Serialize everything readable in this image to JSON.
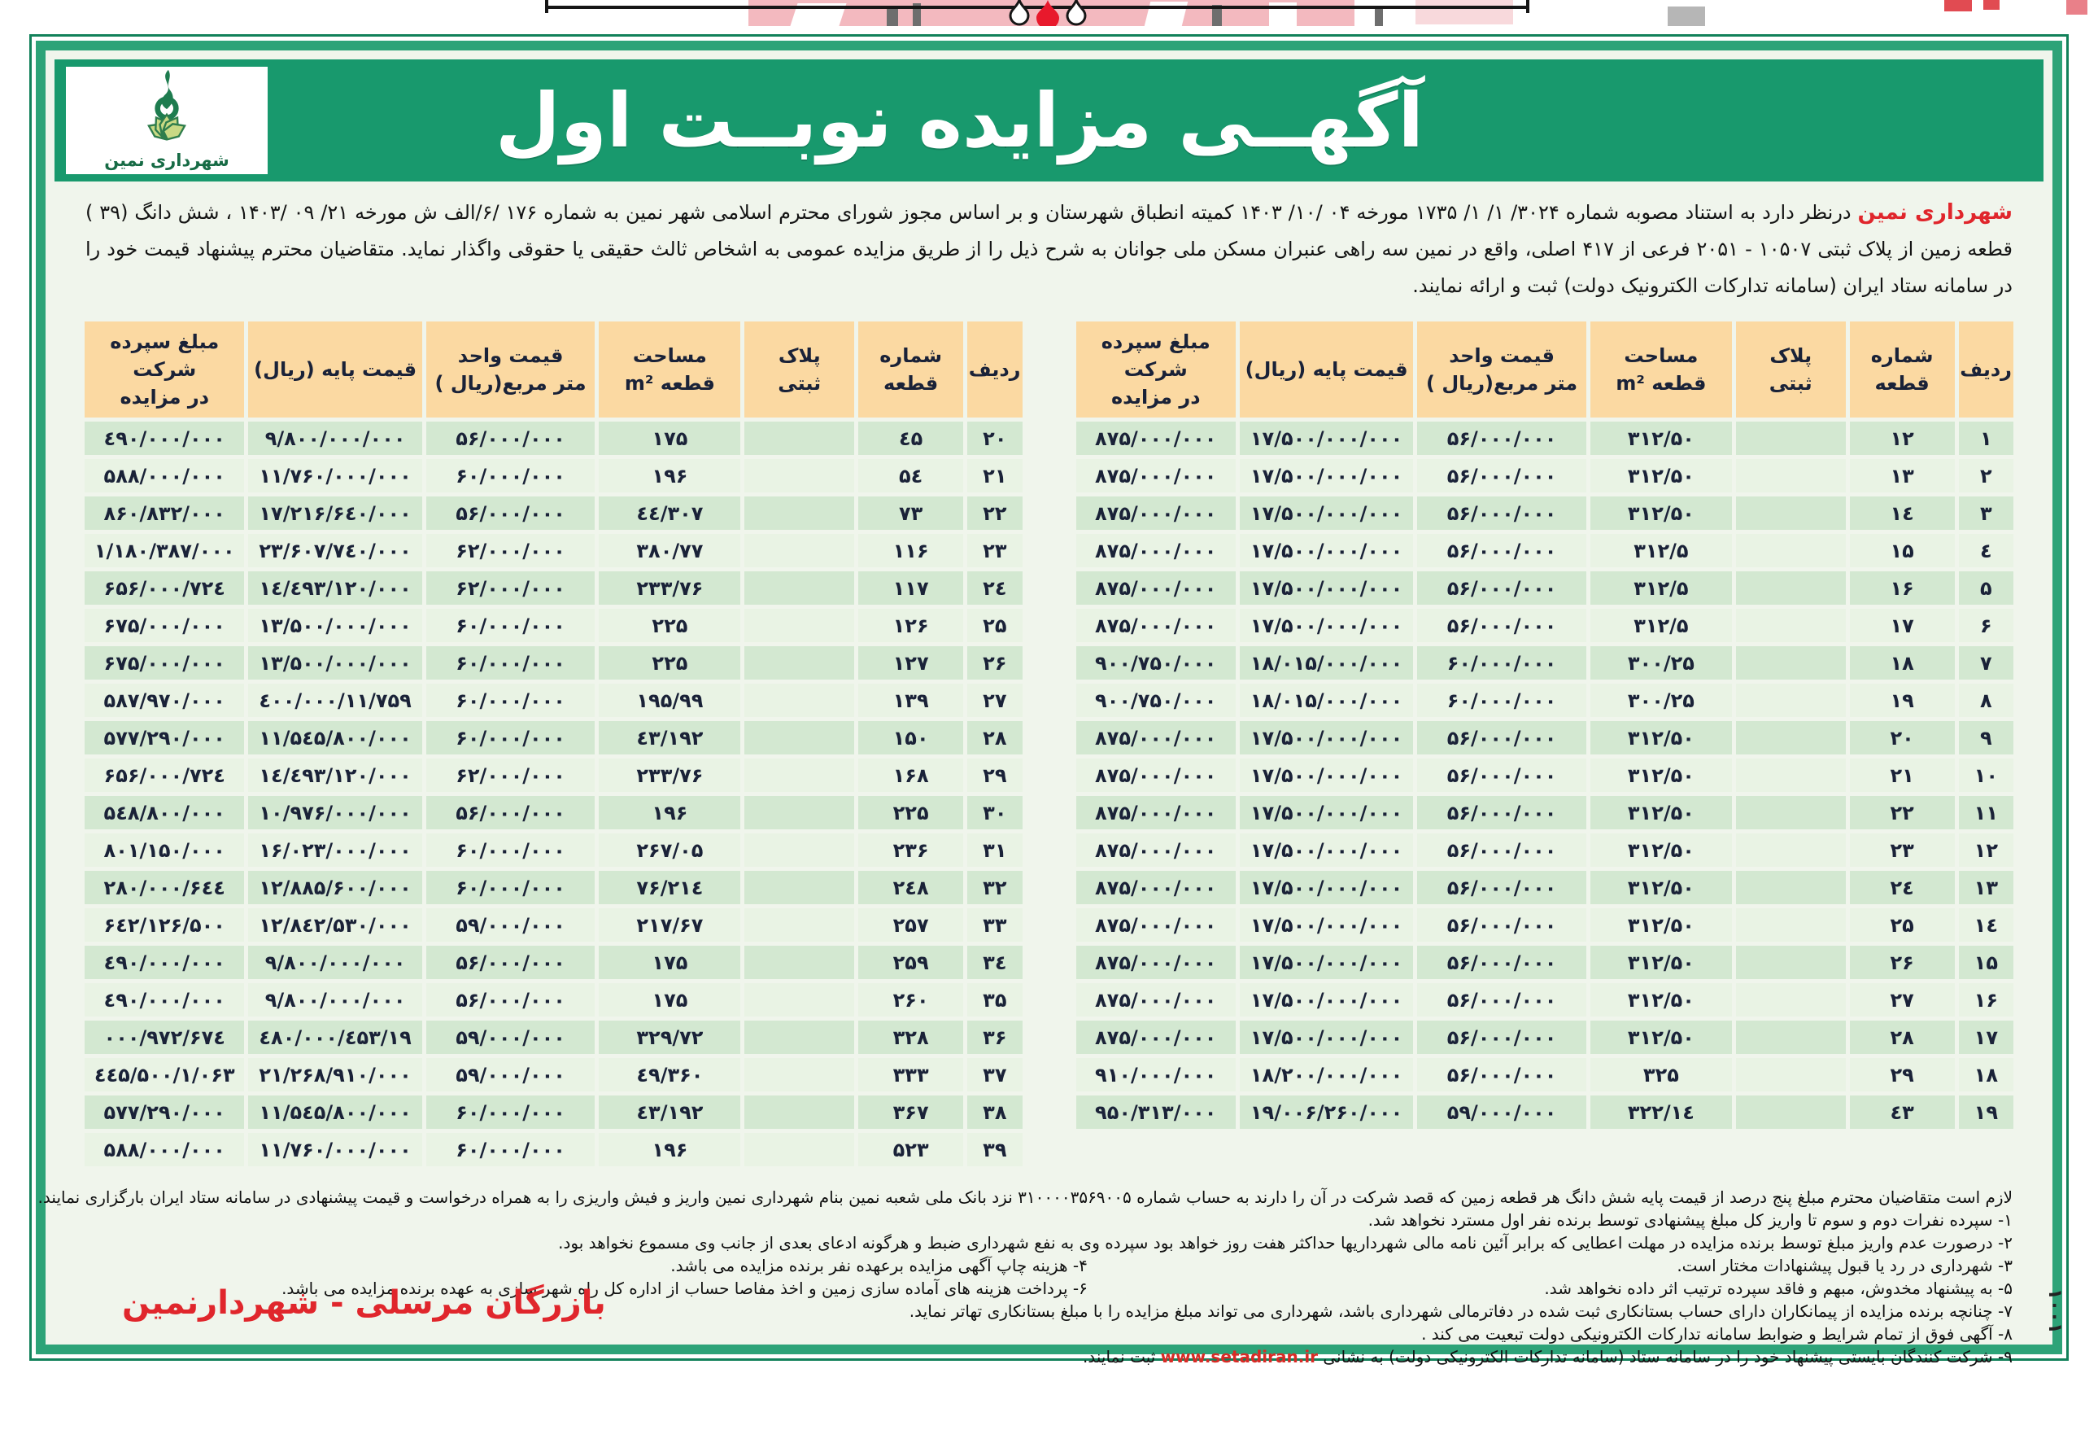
{
  "colors": {
    "banner_green": "#18996d",
    "frame_green": "#2da378",
    "header_peach": "#fbd9a2",
    "row_green_dark": "#d3e8d1",
    "row_green_light": "#e9f3e4",
    "accent_red": "#e0262c"
  },
  "header": {
    "title": "آگهــی مزایده نوبــت اول",
    "logo_caption": "شهرداری نمین"
  },
  "intro": {
    "lead": "شهرداری نمین",
    "body": " درنظر دارد به استناد مصوبه  شماره ۳۰۲۴/ ۱/ ۱/ ۱۷۳۵ مورخه ۰۴ /۱۰/ ۱۴۰۳ کمیته انطباق شهرستان و بر اساس مجوز شورای محترم اسلامی شهر نمین به شماره ۱۷۶ /۶/الف ش مورخه ۲۱/ ۰۹ /۱۴۰۳ ، شش دانگ (۳۹ ) قطعه زمین از پلاک ثبتی ۱۰۵۰۷ - ۲۰۵۱ فرعی از ۴۱۷ اصلی، واقع در نمین  سه راهی عنبران مسکن ملی جوانان  به شرح ذیل را از طریق مزایده عمومی  به اشخاص  ثالث حقیقی یا حقوقی واگذار نماید. متقاضیان محترم پیشنهاد قیمت خود را در سامانه ستاد ایران  (سامانه تدارکات الکترونیک دولت) ثبت و ارائه نمایند."
  },
  "table": {
    "columns": [
      {
        "key": "r",
        "l1": "ردیف",
        "l2": ""
      },
      {
        "key": "p",
        "l1": "شماره",
        "l2": "قطعه"
      },
      {
        "key": "reg",
        "l1": "پلاک",
        "l2": "ثبتی"
      },
      {
        "key": "a",
        "l1": "مساحت",
        "l2": "قطعه m²"
      },
      {
        "key": "u",
        "l1": "قیمت واحد",
        "l2": "متر مربع(ریال )"
      },
      {
        "key": "base",
        "l1": "قیمت پایه (ریال)",
        "l2": ""
      },
      {
        "key": "dep",
        "l1": "مبلغ سپرده شرکت",
        "l2": "در مزایده"
      }
    ]
  },
  "tables": [
    {
      "id": "right",
      "rows": [
        {
          "r": "۱",
          "p": "۱۲",
          "reg": "",
          "a": "۳۱۲/۵۰",
          "u": "۵۶/۰۰۰/۰۰۰",
          "base": "۱۷/۵۰۰/۰۰۰/۰۰۰",
          "dep": "۸۷۵/۰۰۰/۰۰۰"
        },
        {
          "r": "۲",
          "p": "۱۳",
          "reg": "",
          "a": "۳۱۲/۵۰",
          "u": "۵۶/۰۰۰/۰۰۰",
          "base": "۱۷/۵۰۰/۰۰۰/۰۰۰",
          "dep": "۸۷۵/۰۰۰/۰۰۰"
        },
        {
          "r": "۳",
          "p": "۱٤",
          "reg": "",
          "a": "۳۱۲/۵۰",
          "u": "۵۶/۰۰۰/۰۰۰",
          "base": "۱۷/۵۰۰/۰۰۰/۰۰۰",
          "dep": "۸۷۵/۰۰۰/۰۰۰"
        },
        {
          "r": "٤",
          "p": "۱۵",
          "reg": "",
          "a": "۳۱۲/۵",
          "u": "۵۶/۰۰۰/۰۰۰",
          "base": "۱۷/۵۰۰/۰۰۰/۰۰۰",
          "dep": "۸۷۵/۰۰۰/۰۰۰"
        },
        {
          "r": "۵",
          "p": "۱۶",
          "reg": "",
          "a": "۳۱۲/۵",
          "u": "۵۶/۰۰۰/۰۰۰",
          "base": "۱۷/۵۰۰/۰۰۰/۰۰۰",
          "dep": "۸۷۵/۰۰۰/۰۰۰"
        },
        {
          "r": "۶",
          "p": "۱۷",
          "reg": "",
          "a": "۳۱۲/۵",
          "u": "۵۶/۰۰۰/۰۰۰",
          "base": "۱۷/۵۰۰/۰۰۰/۰۰۰",
          "dep": "۸۷۵/۰۰۰/۰۰۰"
        },
        {
          "r": "۷",
          "p": "۱۸",
          "reg": "",
          "a": "۳۰۰/۲۵",
          "u": "۶۰/۰۰۰/۰۰۰",
          "base": "۱۸/۰۱۵/۰۰۰/۰۰۰",
          "dep": "۹۰۰/۷۵۰/۰۰۰"
        },
        {
          "r": "۸",
          "p": "۱۹",
          "reg": "",
          "a": "۳۰۰/۲۵",
          "u": "۶۰/۰۰۰/۰۰۰",
          "base": "۱۸/۰۱۵/۰۰۰/۰۰۰",
          "dep": "۹۰۰/۷۵۰/۰۰۰"
        },
        {
          "r": "۹",
          "p": "۲۰",
          "reg": "",
          "a": "۳۱۲/۵۰",
          "u": "۵۶/۰۰۰/۰۰۰",
          "base": "۱۷/۵۰۰/۰۰۰/۰۰۰",
          "dep": "۸۷۵/۰۰۰/۰۰۰"
        },
        {
          "r": "۱۰",
          "p": "۲۱",
          "reg": "",
          "a": "۳۱۲/۵۰",
          "u": "۵۶/۰۰۰/۰۰۰",
          "base": "۱۷/۵۰۰/۰۰۰/۰۰۰",
          "dep": "۸۷۵/۰۰۰/۰۰۰"
        },
        {
          "r": "۱۱",
          "p": "۲۲",
          "reg": "",
          "a": "۳۱۲/۵۰",
          "u": "۵۶/۰۰۰/۰۰۰",
          "base": "۱۷/۵۰۰/۰۰۰/۰۰۰",
          "dep": "۸۷۵/۰۰۰/۰۰۰"
        },
        {
          "r": "۱۲",
          "p": "۲۳",
          "reg": "",
          "a": "۳۱۲/۵۰",
          "u": "۵۶/۰۰۰/۰۰۰",
          "base": "۱۷/۵۰۰/۰۰۰/۰۰۰",
          "dep": "۸۷۵/۰۰۰/۰۰۰"
        },
        {
          "r": "۱۳",
          "p": "۲٤",
          "reg": "",
          "a": "۳۱۲/۵۰",
          "u": "۵۶/۰۰۰/۰۰۰",
          "base": "۱۷/۵۰۰/۰۰۰/۰۰۰",
          "dep": "۸۷۵/۰۰۰/۰۰۰"
        },
        {
          "r": "۱٤",
          "p": "۲۵",
          "reg": "",
          "a": "۳۱۲/۵۰",
          "u": "۵۶/۰۰۰/۰۰۰",
          "base": "۱۷/۵۰۰/۰۰۰/۰۰۰",
          "dep": "۸۷۵/۰۰۰/۰۰۰"
        },
        {
          "r": "۱۵",
          "p": "۲۶",
          "reg": "",
          "a": "۳۱۲/۵۰",
          "u": "۵۶/۰۰۰/۰۰۰",
          "base": "۱۷/۵۰۰/۰۰۰/۰۰۰",
          "dep": "۸۷۵/۰۰۰/۰۰۰"
        },
        {
          "r": "۱۶",
          "p": "۲۷",
          "reg": "",
          "a": "۳۱۲/۵۰",
          "u": "۵۶/۰۰۰/۰۰۰",
          "base": "۱۷/۵۰۰/۰۰۰/۰۰۰",
          "dep": "۸۷۵/۰۰۰/۰۰۰"
        },
        {
          "r": "۱۷",
          "p": "۲۸",
          "reg": "",
          "a": "۳۱۲/۵۰",
          "u": "۵۶/۰۰۰/۰۰۰",
          "base": "۱۷/۵۰۰/۰۰۰/۰۰۰",
          "dep": "۸۷۵/۰۰۰/۰۰۰"
        },
        {
          "r": "۱۸",
          "p": "۲۹",
          "reg": "",
          "a": "۳۲۵",
          "u": "۵۶/۰۰۰/۰۰۰",
          "base": "۱۸/۲۰۰/۰۰۰/۰۰۰",
          "dep": "۹۱۰/۰۰۰/۰۰۰"
        },
        {
          "r": "۱۹",
          "p": "٤۳",
          "reg": "",
          "a": "۳۲۲/۱٤",
          "u": "۵۹/۰۰۰/۰۰۰",
          "base": "۱۹/۰۰۶/۲۶۰/۰۰۰",
          "dep": "۹۵۰/۳۱۳/۰۰۰"
        }
      ]
    },
    {
      "id": "left",
      "rows": [
        {
          "r": "۲۰",
          "p": "٤۵",
          "reg": "",
          "a": "۱۷۵",
          "u": "۵۶/۰۰۰/۰۰۰",
          "base": "۹/۸۰۰/۰۰۰/۰۰۰",
          "dep": "٤۹۰/۰۰۰/۰۰۰"
        },
        {
          "r": "۲۱",
          "p": "۵٤",
          "reg": "",
          "a": "۱۹۶",
          "u": "۶۰/۰۰۰/۰۰۰",
          "base": "۱۱/۷۶۰/۰۰۰/۰۰۰",
          "dep": "۵۸۸/۰۰۰/۰۰۰"
        },
        {
          "r": "۲۲",
          "p": "۷۳",
          "reg": "",
          "a": "۳۰۷/٤٤",
          "u": "۵۶/۰۰۰/۰۰۰",
          "base": "۱۷/۲۱۶/۶٤۰/۰۰۰",
          "dep": "۸۶۰/۸۳۲/۰۰۰"
        },
        {
          "r": "۲۳",
          "p": "۱۱۶",
          "reg": "",
          "a": "۳۸۰/۷۷",
          "u": "۶۲/۰۰۰/۰۰۰",
          "base": "۲۳/۶۰۷/۷٤۰/۰۰۰",
          "dep": "۱/۱۸۰/۳۸۷/۰۰۰"
        },
        {
          "r": "۲٤",
          "p": "۱۱۷",
          "reg": "",
          "a": "۲۳۳/۷۶",
          "u": "۶۲/۰۰۰/۰۰۰",
          "base": "۱٤/٤۹۳/۱۲۰/۰۰۰",
          "dep": "۷۲٤/۶۵۶/۰۰۰"
        },
        {
          "r": "۲۵",
          "p": "۱۲۶",
          "reg": "",
          "a": "۲۲۵",
          "u": "۶۰/۰۰۰/۰۰۰",
          "base": "۱۳/۵۰۰/۰۰۰/۰۰۰",
          "dep": "۶۷۵/۰۰۰/۰۰۰"
        },
        {
          "r": "۲۶",
          "p": "۱۲۷",
          "reg": "",
          "a": "۲۲۵",
          "u": "۶۰/۰۰۰/۰۰۰",
          "base": "۱۳/۵۰۰/۰۰۰/۰۰۰",
          "dep": "۶۷۵/۰۰۰/۰۰۰"
        },
        {
          "r": "۲۷",
          "p": "۱۳۹",
          "reg": "",
          "a": "۱۹۵/۹۹",
          "u": "۶۰/۰۰۰/۰۰۰",
          "base": "۱۱/۷۵۹/٤۰۰/۰۰۰",
          "dep": "۵۸۷/۹۷۰/۰۰۰"
        },
        {
          "r": "۲۸",
          "p": "۱۵۰",
          "reg": "",
          "a": "۱۹۲/٤۳",
          "u": "۶۰/۰۰۰/۰۰۰",
          "base": "۱۱/۵٤۵/۸۰۰/۰۰۰",
          "dep": "۵۷۷/۲۹۰/۰۰۰"
        },
        {
          "r": "۲۹",
          "p": "۱۶۸",
          "reg": "",
          "a": "۲۳۳/۷۶",
          "u": "۶۲/۰۰۰/۰۰۰",
          "base": "۱٤/٤۹۳/۱۲۰/۰۰۰",
          "dep": "۷۲٤/۶۵۶/۰۰۰"
        },
        {
          "r": "۳۰",
          "p": "۲۲۵",
          "reg": "",
          "a": "۱۹۶",
          "u": "۵۶/۰۰۰/۰۰۰",
          "base": "۱۰/۹۷۶/۰۰۰/۰۰۰",
          "dep": "۵٤۸/۸۰۰/۰۰۰"
        },
        {
          "r": "۳۱",
          "p": "۲۳۶",
          "reg": "",
          "a": "۲۶۷/۰۵",
          "u": "۶۰/۰۰۰/۰۰۰",
          "base": "۱۶/۰۲۳/۰۰۰/۰۰۰",
          "dep": "۸۰۱/۱۵۰/۰۰۰"
        },
        {
          "r": "۳۲",
          "p": "۲٤۸",
          "reg": "",
          "a": "۲۱٤/۷۶",
          "u": "۶۰/۰۰۰/۰۰۰",
          "base": "۱۲/۸۸۵/۶۰۰/۰۰۰",
          "dep": "۶٤٤/۲۸۰/۰۰۰"
        },
        {
          "r": "۳۳",
          "p": "۲۵۷",
          "reg": "",
          "a": "۲۱۷/۶۷",
          "u": "۵۹/۰۰۰/۰۰۰",
          "base": "۱۲/۸٤۲/۵۳۰/۰۰۰",
          "dep": "۶٤۲/۱۲۶/۵۰۰"
        },
        {
          "r": "۳٤",
          "p": "۲۵۹",
          "reg": "",
          "a": "۱۷۵",
          "u": "۵۶/۰۰۰/۰۰۰",
          "base": "۹/۸۰۰/۰۰۰/۰۰۰",
          "dep": "٤۹۰/۰۰۰/۰۰۰"
        },
        {
          "r": "۳۵",
          "p": "۲۶۰",
          "reg": "",
          "a": "۱۷۵",
          "u": "۵۶/۰۰۰/۰۰۰",
          "base": "۹/۸۰۰/۰۰۰/۰۰۰",
          "dep": "٤۹۰/۰۰۰/۰۰۰"
        },
        {
          "r": "۳۶",
          "p": "۳۲۸",
          "reg": "",
          "a": "۳۲۹/۷۲",
          "u": "۵۹/۰۰۰/۰۰۰",
          "base": "۱۹/٤۵۳/٤۸۰/۰۰۰",
          "dep": "۹۷۲/۶۷٤/۰۰۰"
        },
        {
          "r": "۳۷",
          "p": "۳۳۳",
          "reg": "",
          "a": "۳۶۰/٤۹",
          "u": "۵۹/۰۰۰/۰۰۰",
          "base": "۲۱/۲۶۸/۹۱۰/۰۰۰",
          "dep": "۱/۰۶۳/٤٤۵/۵۰۰"
        },
        {
          "r": "۳۸",
          "p": "۳۶۷",
          "reg": "",
          "a": "۱۹۲/٤۳",
          "u": "۶۰/۰۰۰/۰۰۰",
          "base": "۱۱/۵٤۵/۸۰۰/۰۰۰",
          "dep": "۵۷۷/۲۹۰/۰۰۰"
        },
        {
          "r": "۳۹",
          "p": "۵۲۳",
          "reg": "",
          "a": "۱۹۶",
          "u": "۶۰/۰۰۰/۰۰۰",
          "base": "۱۱/۷۶۰/۰۰۰/۰۰۰",
          "dep": "۵۸۸/۰۰۰/۰۰۰"
        }
      ]
    }
  ],
  "notes": {
    "intro": "لازم است متقاضیان محترم مبلغ پنج درصد از قیمت پایه شش دانگ هر قطعه زمین که قصد شرکت در آن را دارند به حساب شماره ۳۱۰۰۰۰۳۵۶۹۰۰۵ نزد بانک ملی شعبه نمین بنام شهرداری نمین واریز و فیش واریزی را به همراه درخواست و قیمت پیشنهادی  در سامانه ستاد ایران بارگزاری نمایند.",
    "items": [
      {
        "pair": false,
        "text": "۱- سپرده نفرات دوم و سوم تا واریز کل مبلغ پیشنهادی توسط برنده نفر اول مسترد نخواهد شد."
      },
      {
        "pair": false,
        "text": "۲- درصورت عدم واریز مبلغ توسط برنده مزایده در مهلت اعطایی که برابر آئین نامه مالی شهرداریها حداکثر هفت روز خواهد بود سپرده وی  به نفع شهرداری ضبط و هرگونه ادعای بعدی از جانب وی مسموع نخواهد بود."
      },
      {
        "pair": true,
        "first": "۳- شهرداری در رد یا قبول پیشنهادات مختار است.",
        "second": "۴- هزینه چاپ آگهی مزایده برعهده نفر برنده مزایده می باشد."
      },
      {
        "pair": true,
        "first": "۵- به پیشنهاد مخدوش، مبهم و فاقد سپرده ترتیب اثر داده نخواهد شد.",
        "second": "۶- پرداخت هزینه های آماده سازی زمین و اخذ مفاصا حساب از اداره کل راه شهر سازی به عهده برنده مزایده می باشد."
      },
      {
        "pair": false,
        "text": "۷- چنانچه برنده مزایده از پیمانکاران دارای حساب بستانکاری ثبت شده در دفاترمالی شهرداری باشد، شهرداری  می تواند مبلغ مزایده را  با مبلغ بستانکاری تهاتر نماید."
      },
      {
        "pair": false,
        "text": "۸- آگهی فوق از تمام شرایط و ضوابط سامانه تدارکات الکترونیکی دولت تبعیت می کند ."
      },
      {
        "pair": false,
        "pre": "۹- شرکت کنندگان بایستی پیشنهاد خود را در سامانه ستاد (سامانه تدارکات الکترونیکی دولت) به نشانی ",
        "link": "www.setadiran.ir",
        "post": " ثبت نمایند."
      }
    ]
  },
  "signature": "بازرگان مرسلی - شهردارنمین",
  "page_code": "۱۰۰۱"
}
